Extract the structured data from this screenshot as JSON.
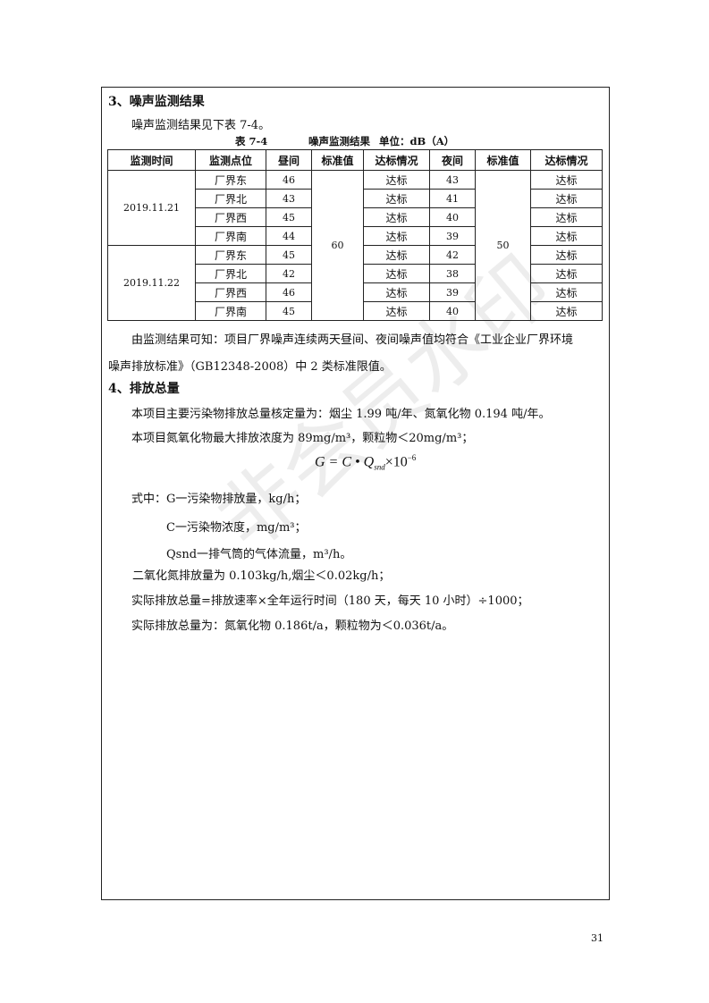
{
  "section3": {
    "title": "3、噪声监测结果",
    "intro": "噪声监测结果见下表 7-4。",
    "caption": {
      "number": "表 7-4",
      "name": "噪声监测结果",
      "unit": "单位：dB（A）"
    },
    "table": {
      "headers": [
        "监测时间",
        "监测点位",
        "昼间",
        "标准值",
        "达标情况",
        "夜间",
        "标准值",
        "达标情况"
      ],
      "day_standard": "60",
      "night_standard": "50",
      "groups": [
        {
          "date": "2019.11.21",
          "rows": [
            {
              "point": "厂界东",
              "day": "46",
              "day_status": "达标",
              "night": "43",
              "night_status": "达标"
            },
            {
              "point": "厂界北",
              "day": "43",
              "day_status": "达标",
              "night": "41",
              "night_status": "达标"
            },
            {
              "point": "厂界西",
              "day": "45",
              "day_status": "达标",
              "night": "40",
              "night_status": "达标"
            },
            {
              "point": "厂界南",
              "day": "44",
              "day_status": "达标",
              "night": "39",
              "night_status": "达标"
            }
          ]
        },
        {
          "date": "2019.11.22",
          "rows": [
            {
              "point": "厂界东",
              "day": "45",
              "day_status": "达标",
              "night": "42",
              "night_status": "达标"
            },
            {
              "point": "厂界北",
              "day": "42",
              "day_status": "达标",
              "night": "38",
              "night_status": "达标"
            },
            {
              "point": "厂界西",
              "day": "46",
              "day_status": "达标",
              "night": "39",
              "night_status": "达标"
            },
            {
              "point": "厂界南",
              "day": "45",
              "day_status": "达标",
              "night": "40",
              "night_status": "达标"
            }
          ]
        }
      ]
    },
    "conclusion_line1": "由监测结果可知：项目厂界噪声连续两天昼间、夜间噪声值均符合《工业企业厂界环境",
    "conclusion_line2": "噪声排放标准》（GB12348-2008）中 2 类标准限值。"
  },
  "section4": {
    "title": "4、排放总量",
    "p1": "本项目主要污染物排放总量核定量为：烟尘 1.99 吨/年、氮氧化物 0.194 吨/年。",
    "p2": "本项目氮氧化物最大排放浓度为 89mg/m³，颗粒物＜20mg/m³；",
    "formula": {
      "lhs": "G = C • Q",
      "sub": "snd",
      "rhs": "×10",
      "exp": "−6"
    },
    "where1": "式中：G一污染物排放量，kg/h；",
    "where2": "C一污染物浓度，mg/m³；",
    "where3": "Qsnd一排气筒的气体流量，m³/h。",
    "p3": "二氧化氮排放量为 0.103kg/h,烟尘＜0.02kg/h；",
    "p4": "实际排放总量=排放速率×全年运行时间（180 天，每天 10 小时）÷1000；",
    "p5": "实际排放总量为：氮氧化物 0.186t/a，颗粒物为＜0.036t/a。"
  },
  "watermark": "非会员水印",
  "page_number": "31"
}
